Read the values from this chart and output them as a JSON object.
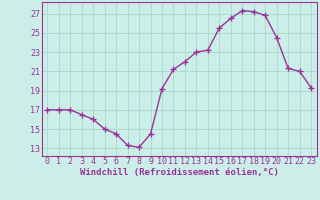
{
  "x": [
    0,
    1,
    2,
    3,
    4,
    5,
    6,
    7,
    8,
    9,
    10,
    11,
    12,
    13,
    14,
    15,
    16,
    17,
    18,
    19,
    20,
    21,
    22,
    23
  ],
  "y": [
    17,
    17,
    17,
    16.5,
    16,
    15,
    14.5,
    13.3,
    13.1,
    14.5,
    19.2,
    21.2,
    22,
    23,
    23.2,
    25.5,
    26.5,
    27.3,
    27.2,
    26.8,
    24.5,
    21.3,
    21,
    19.3
  ],
  "line_color": "#993399",
  "marker_color": "#993399",
  "bg_color": "#cceee8",
  "grid_color": "#aaddcc",
  "xlabel": "Windchill (Refroidissement éolien,°C)",
  "ylabel_ticks": [
    13,
    15,
    17,
    19,
    21,
    23,
    25,
    27
  ],
  "xlim": [
    -0.5,
    23.5
  ],
  "ylim": [
    12.2,
    28.2
  ],
  "xticks": [
    0,
    1,
    2,
    3,
    4,
    5,
    6,
    7,
    8,
    9,
    10,
    11,
    12,
    13,
    14,
    15,
    16,
    17,
    18,
    19,
    20,
    21,
    22,
    23
  ],
  "xlabel_fontsize": 6.5,
  "tick_fontsize": 6.0,
  "line_width": 1.0,
  "marker_size": 4.0
}
